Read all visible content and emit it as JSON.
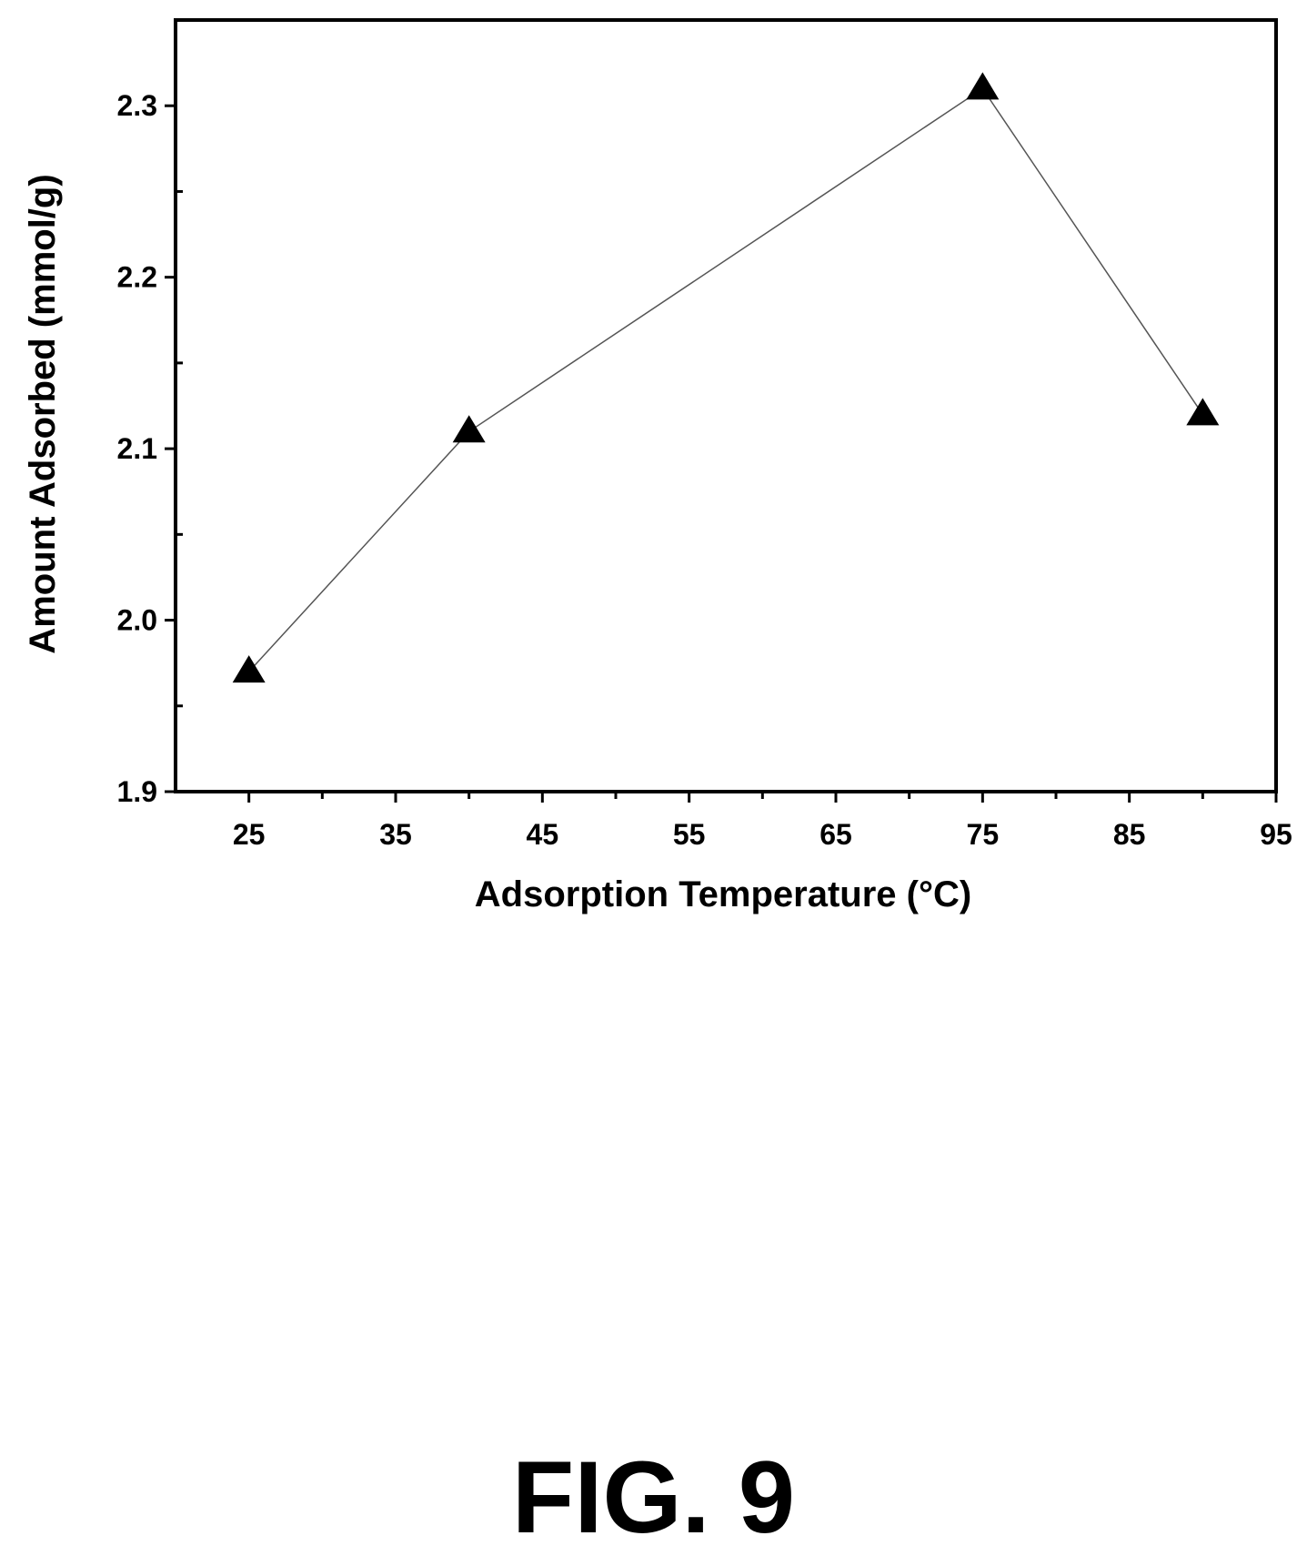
{
  "chart_data": {
    "type": "line",
    "title": "",
    "xlabel": "Adsorption Temperature (°C)",
    "ylabel": "Amount Adsorbed (mmol/g)",
    "xlim": [
      20,
      95
    ],
    "ylim": [
      1.9,
      2.35
    ],
    "x_ticks": [
      25,
      35,
      45,
      55,
      65,
      75,
      85,
      95
    ],
    "y_ticks": [
      1.9,
      2.0,
      2.1,
      2.2,
      2.3
    ],
    "y_tick_labels": [
      "1.9",
      "2.0",
      "2.1",
      "2.2",
      "2.3"
    ],
    "grid": false,
    "marker": "triangle",
    "series": [
      {
        "x": [
          25,
          40,
          75,
          90
        ],
        "values": [
          1.97,
          2.11,
          2.31,
          2.12
        ]
      }
    ]
  },
  "caption": "FIG. 9"
}
